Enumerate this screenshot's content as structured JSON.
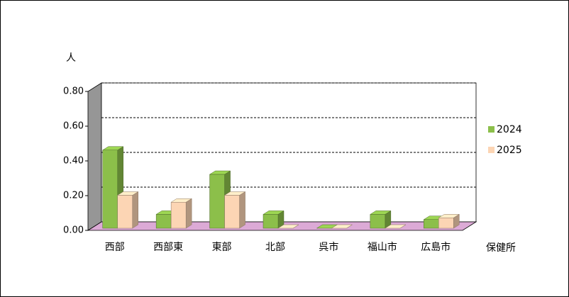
{
  "chart_data": {
    "type": "bar3d",
    "y_axis_label": "人",
    "x_axis_label": "保健所",
    "categories": [
      "西部",
      "西部東",
      "東部",
      "北部",
      "呉市",
      "福山市",
      "広島市"
    ],
    "series": [
      {
        "name": "2024",
        "color": "#8cbf4a",
        "values": [
          0.45,
          0.08,
          0.31,
          0.08,
          0.0,
          0.08,
          0.05
        ]
      },
      {
        "name": "2025",
        "color": "#fcd5b4",
        "values": [
          0.19,
          0.15,
          0.19,
          0.0,
          0.0,
          0.0,
          0.06
        ]
      }
    ],
    "ylim": [
      0,
      0.8
    ],
    "yticks": [
      {
        "value": 0,
        "label": "0.00"
      },
      {
        "value": 0.2,
        "label": "0.20"
      },
      {
        "value": 0.4,
        "label": "0.40"
      },
      {
        "value": 0.6,
        "label": "0.60"
      },
      {
        "value": 0.8,
        "label": "0.80"
      }
    ],
    "grid": true,
    "legend": "right"
  }
}
